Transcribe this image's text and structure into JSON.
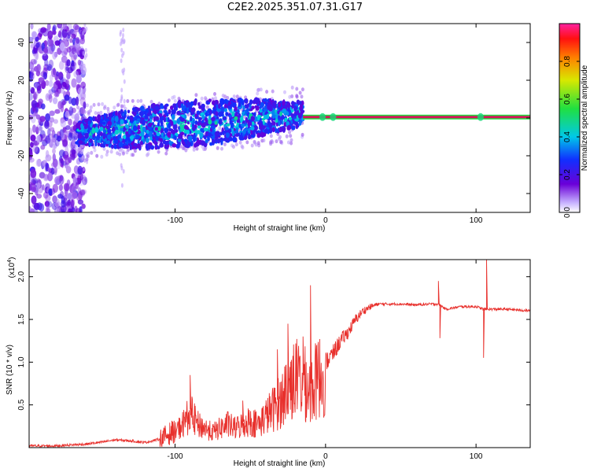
{
  "title": "C2E2.2025.351.07.31.G17",
  "colors": {
    "snr_line": "#e8302c",
    "carrier": "#d4145a",
    "spectrum_low": "#6a00d8",
    "spectrum_mid": "#00b0e0",
    "spectrum_high": "#30ff60"
  },
  "chart_data": [
    {
      "type": "heatmap",
      "title": "C2E2.2025.351.07.31.G17",
      "xlabel": "Height of straight line (km)",
      "ylabel": "Frequency (Hz)",
      "xlim": [
        -197,
        136
      ],
      "ylim": [
        -50,
        50
      ],
      "xticks": [
        -100,
        0,
        100
      ],
      "yticks": [
        -40,
        -20,
        0,
        20,
        40
      ],
      "colorbar": {
        "label": "Normalized spectral amplitude",
        "range": [
          0,
          1
        ],
        "ticks": [
          0.0,
          0.2,
          0.4,
          0.6,
          0.8
        ]
      },
      "tick_labels_x": [
        "-100",
        "0",
        "100"
      ],
      "tick_labels_y": [
        "-40",
        "-20",
        "0",
        "20",
        "40"
      ],
      "colorbar_tick_labels": [
        "0.0",
        "0.2",
        "0.4",
        "0.6",
        "0.8"
      ],
      "features": [
        {
          "name": "noise-scatter",
          "x_range": [
            -197,
            -160
          ],
          "freq_range": [
            -50,
            50
          ],
          "amplitude": 0.15
        },
        {
          "name": "spread-band",
          "x_range": [
            -165,
            -15
          ],
          "freq_center_start": -8,
          "freq_center_end": 2,
          "amplitude": 0.35
        },
        {
          "name": "carrier-line",
          "x_range": [
            -15,
            136
          ],
          "freq": 0.5,
          "amplitude": 0.95
        }
      ]
    },
    {
      "type": "line",
      "xlabel": "Height of straight line (km)",
      "ylabel": "SNR (10 * v/v)",
      "yscale_label": "(x10",
      "yscale_exp": "4",
      "xlim": [
        -197,
        136
      ],
      "ylim": [
        0.0,
        2.2
      ],
      "xticks": [
        -100,
        0,
        100
      ],
      "yticks": [
        0.5,
        1.0,
        1.5,
        2.0
      ],
      "tick_labels_x": [
        "-100",
        "0",
        "100"
      ],
      "tick_labels_y": [
        "0.5",
        "1.0",
        "1.5",
        "2.0"
      ],
      "series": [
        {
          "name": "SNR",
          "x": [
            -197,
            -180,
            -160,
            -150,
            -140,
            -130,
            -120,
            -110,
            -100,
            -95,
            -90,
            -85,
            -80,
            -75,
            -70,
            -65,
            -60,
            -55,
            -50,
            -45,
            -40,
            -35,
            -30,
            -25,
            -20,
            -15,
            -10,
            -5,
            0,
            5,
            10,
            15,
            20,
            25,
            30,
            35,
            40,
            50,
            60,
            70,
            75,
            80,
            90,
            100,
            105,
            110,
            120,
            136
          ],
          "values": [
            0.02,
            0.02,
            0.04,
            0.06,
            0.09,
            0.08,
            0.06,
            0.1,
            0.2,
            0.3,
            0.45,
            0.3,
            0.25,
            0.2,
            0.25,
            0.3,
            0.25,
            0.3,
            0.35,
            0.3,
            0.4,
            0.5,
            0.6,
            0.8,
            0.9,
            0.85,
            0.75,
            0.9,
            1.0,
            1.1,
            1.25,
            1.35,
            1.5,
            1.6,
            1.65,
            1.68,
            1.68,
            1.68,
            1.67,
            1.68,
            1.68,
            1.62,
            1.65,
            1.65,
            1.62,
            1.62,
            1.62,
            1.6
          ],
          "spikes": [
            {
              "x": -90,
              "value": 0.85
            },
            {
              "x": -55,
              "value": 0.55
            },
            {
              "x": -32,
              "value": 1.15
            },
            {
              "x": -25,
              "value": 1.45
            },
            {
              "x": -15,
              "value": 1.3
            },
            {
              "x": -10,
              "value": 1.9
            },
            {
              "x": 75,
              "value": 1.95
            },
            {
              "x": 76,
              "value": 1.28
            },
            {
              "x": 105,
              "value": 1.05
            },
            {
              "x": 107,
              "value": 2.2
            }
          ]
        }
      ]
    }
  ]
}
